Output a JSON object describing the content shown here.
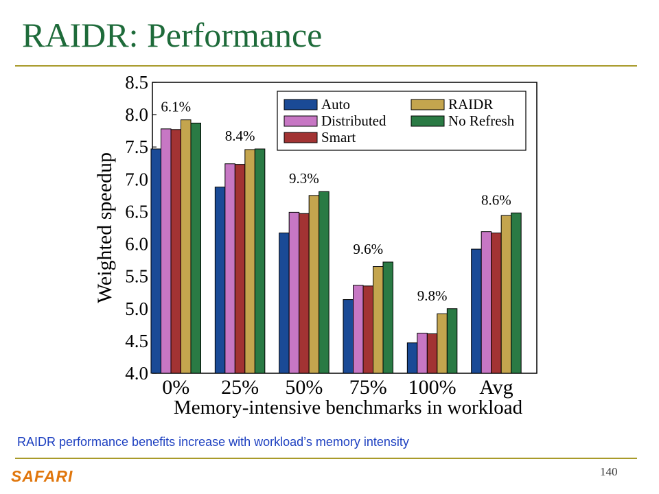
{
  "slide": {
    "title": "RAIDR: Performance",
    "caption": "RAIDR performance benefits increase with workload’s memory intensity",
    "logo_text": "SAFARI",
    "page_number": "140"
  },
  "colors": {
    "title": "#1e6b3a",
    "rule": "#a89a2a",
    "caption": "#1c3fc0",
    "logo": "#e0760c"
  },
  "chart_data": {
    "type": "bar",
    "title": "",
    "xlabel": "Memory-intensive benchmarks in workload",
    "ylabel": "Weighted speedup",
    "ylim": [
      4.0,
      8.5
    ],
    "yticks": [
      "4.0",
      "4.5",
      "5.0",
      "5.5",
      "6.0",
      "6.5",
      "7.0",
      "7.5",
      "8.0",
      "8.5"
    ],
    "categories": [
      "0%",
      "25%",
      "50%",
      "75%",
      "100%",
      "Avg"
    ],
    "annotations": [
      "6.1%",
      "8.4%",
      "9.3%",
      "9.6%",
      "9.8%",
      "8.6%"
    ],
    "series": [
      {
        "name": "Auto",
        "color": "#1a4a96",
        "values": [
          7.47,
          6.88,
          6.17,
          5.14,
          4.47,
          5.92
        ]
      },
      {
        "name": "Distributed",
        "color": "#c777c4",
        "values": [
          7.78,
          7.24,
          6.49,
          5.36,
          4.62,
          6.19
        ]
      },
      {
        "name": "Smart",
        "color": "#a23333",
        "values": [
          7.77,
          7.23,
          6.47,
          5.35,
          4.61,
          6.17
        ]
      },
      {
        "name": "RAIDR",
        "color": "#c4a54e",
        "values": [
          7.92,
          7.46,
          6.75,
          5.65,
          4.92,
          6.44
        ]
      },
      {
        "name": "No Refresh",
        "color": "#2a7a44",
        "values": [
          7.87,
          7.47,
          6.81,
          5.72,
          5.0,
          6.48
        ]
      }
    ],
    "legend_placement": "top-right",
    "grid": false
  }
}
